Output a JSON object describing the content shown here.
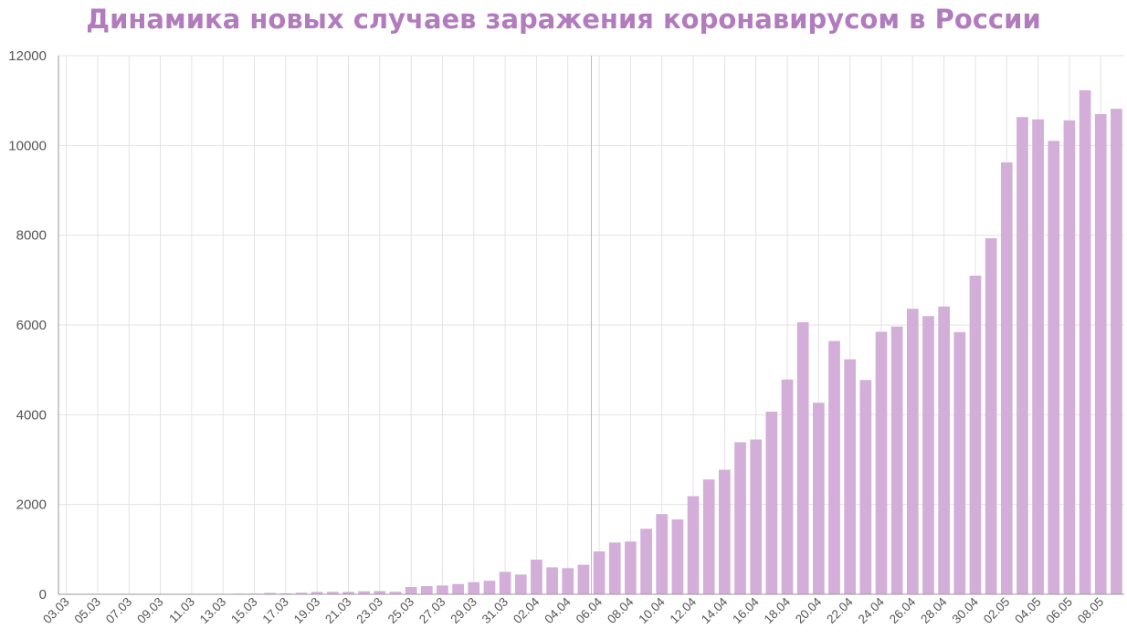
{
  "colors": {
    "title": "#b27bbd",
    "bar": "#d3aed9",
    "grid": "#e3e3e3",
    "axis": "#999999",
    "tick_text": "#555555"
  },
  "chart_data": {
    "type": "bar",
    "title": "Динамика новых случаев заражения коронавирусом в России",
    "xlabel": "",
    "ylabel": "",
    "ylim": [
      0,
      12000
    ],
    "yticks": [
      0,
      2000,
      4000,
      6000,
      8000,
      10000,
      12000
    ],
    "grid": true,
    "categories": [
      "03.03",
      "04.03",
      "05.03",
      "06.03",
      "07.03",
      "08.03",
      "09.03",
      "10.03",
      "11.03",
      "12.03",
      "13.03",
      "14.03",
      "15.03",
      "16.03",
      "17.03",
      "18.03",
      "19.03",
      "20.03",
      "21.03",
      "22.03",
      "23.03",
      "24.03",
      "25.03",
      "26.03",
      "27.03",
      "28.03",
      "29.03",
      "30.03",
      "31.03",
      "01.04",
      "02.04",
      "03.04",
      "04.04",
      "05.04",
      "06.04",
      "07.04",
      "08.04",
      "09.04",
      "10.04",
      "11.04",
      "12.04",
      "13.04",
      "14.04",
      "15.04",
      "16.04",
      "17.04",
      "18.04",
      "19.04",
      "20.04",
      "21.04",
      "22.04",
      "23.04",
      "24.04",
      "25.04",
      "26.04",
      "27.04",
      "28.04",
      "29.04",
      "30.04",
      "01.05",
      "02.05",
      "03.05",
      "04.05",
      "05.05",
      "06.05",
      "07.05",
      "08.05",
      "09.05"
    ],
    "xticklabels": [
      "03.03",
      "05.03",
      "07.03",
      "09.03",
      "11.03",
      "13.03",
      "15.03",
      "17.03",
      "19.03",
      "21.03",
      "23.03",
      "25.03",
      "27.03",
      "29.03",
      "31.03",
      "02.04",
      "04.04",
      "06.04",
      "08.04",
      "10.04",
      "12.04",
      "14.04",
      "16.04",
      "18.04",
      "20.04",
      "22.04",
      "24.04",
      "26.04",
      "28.04",
      "30.04",
      "02.05",
      "04.05",
      "06.05",
      "08.05"
    ],
    "values": [
      1,
      0,
      0,
      0,
      0,
      1,
      0,
      3,
      8,
      6,
      6,
      14,
      14,
      30,
      21,
      33,
      52,
      54,
      53,
      67,
      71,
      57,
      163,
      182,
      196,
      228,
      270,
      302,
      500,
      440,
      771,
      601,
      582,
      658,
      954,
      1154,
      1175,
      1459,
      1786,
      1667,
      2186,
      2558,
      2774,
      3388,
      3448,
      4070,
      4785,
      6060,
      4268,
      5642,
      5236,
      4774,
      5849,
      5966,
      6361,
      6198,
      6411,
      5841,
      7099,
      7933,
      9623,
      10633,
      10581,
      10102,
      10559,
      11231,
      10699,
      10817
    ]
  }
}
